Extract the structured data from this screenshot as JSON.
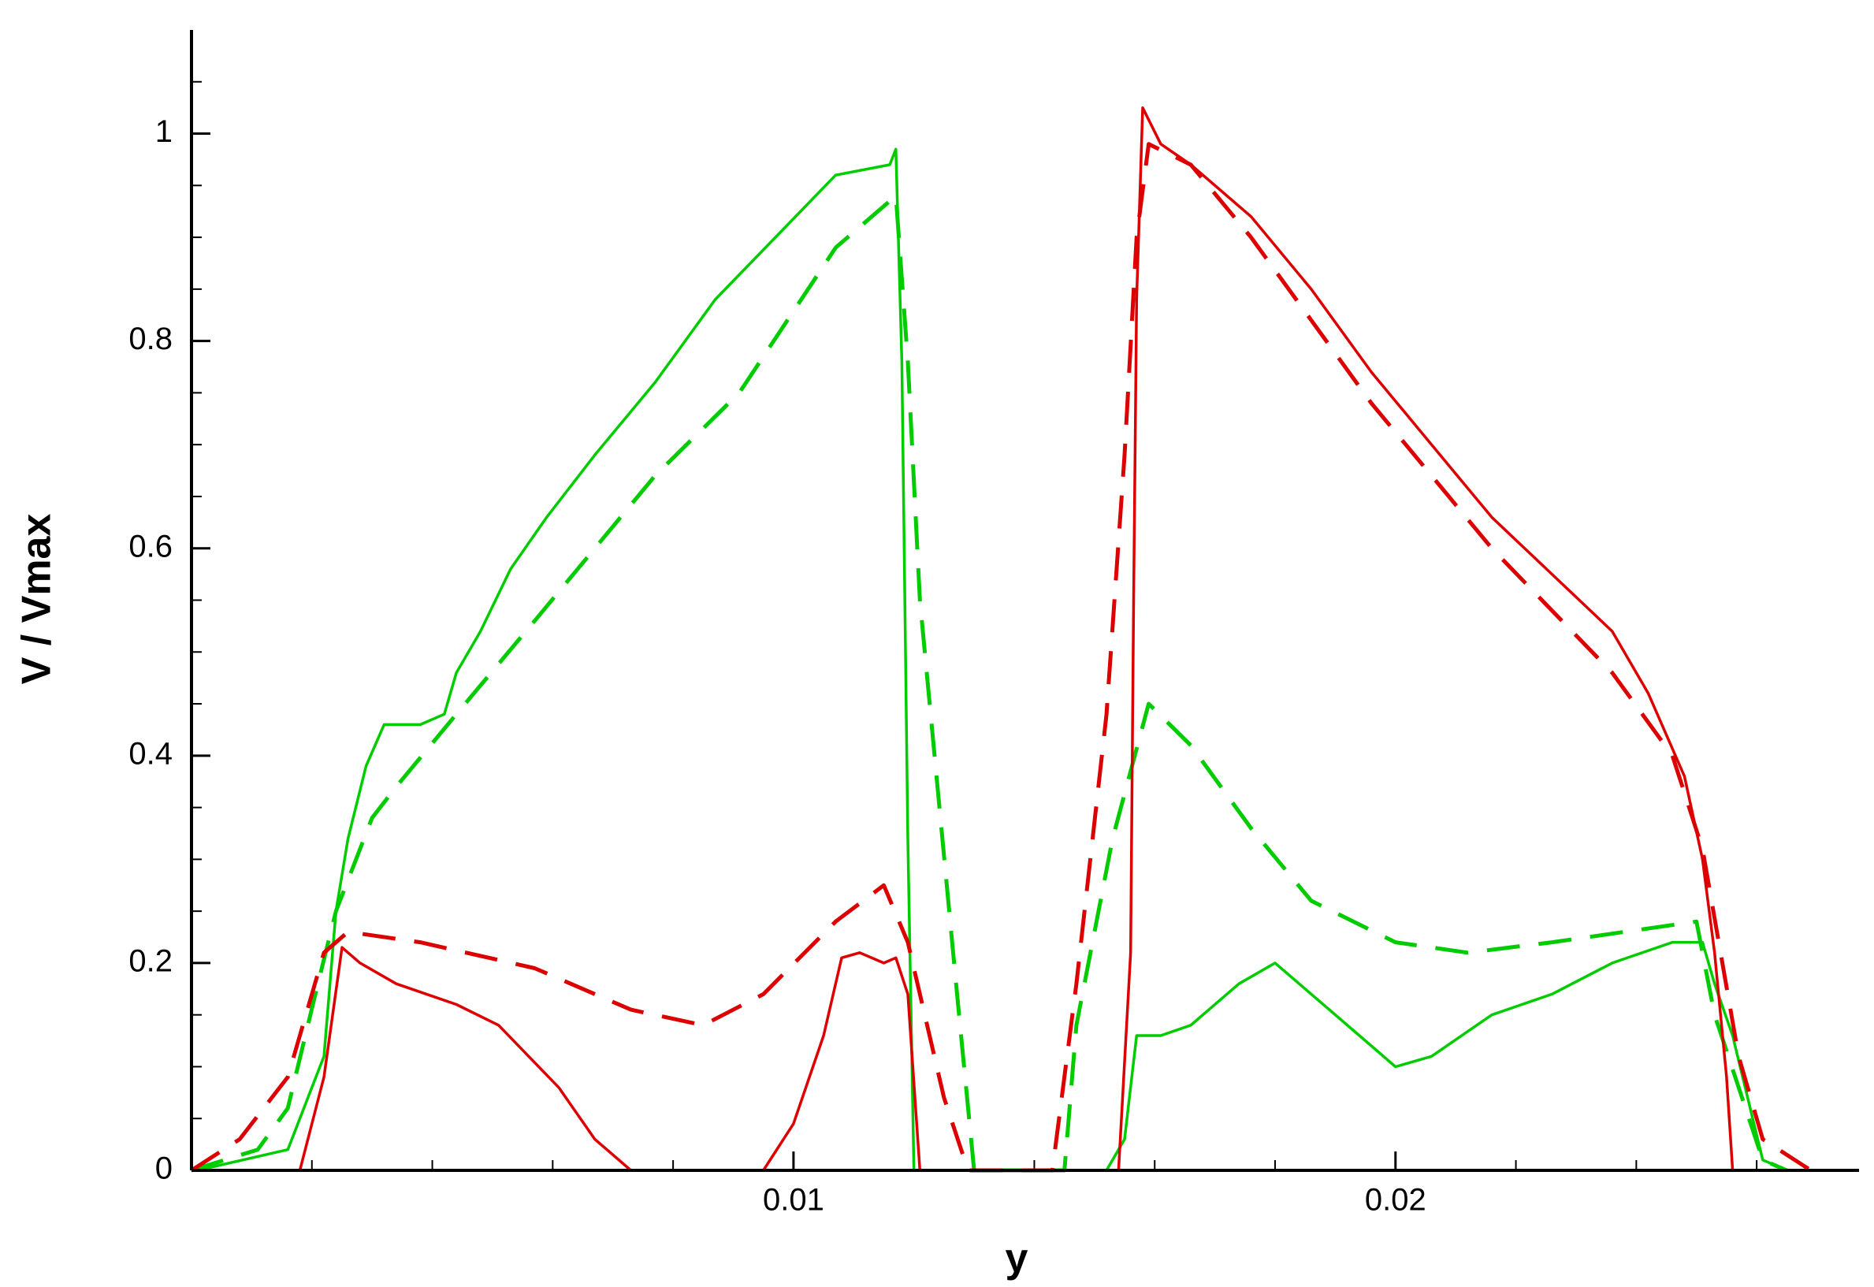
{
  "chart_data": {
    "type": "line",
    "xlabel": "y",
    "ylabel": "V / Vmax",
    "xlim": [
      0,
      0.0277
    ],
    "ylim": [
      0,
      1.1
    ],
    "xticks": [
      0.01,
      0.02
    ],
    "yticks": [
      0,
      0.2,
      0.4,
      0.6,
      0.8,
      1
    ],
    "xminorticks": [
      0.002,
      0.004,
      0.006,
      0.008,
      0.012,
      0.014,
      0.016,
      0.018,
      0.022,
      0.024,
      0.026
    ],
    "yminorticks": [
      0.05,
      0.1,
      0.15,
      0.25,
      0.3,
      0.35,
      0.45,
      0.5,
      0.55,
      0.65,
      0.7,
      0.75,
      0.85,
      0.9,
      0.95,
      1.05
    ],
    "series": [
      {
        "color": "#00cc00",
        "dash": false,
        "x": [
          0.0001,
          0.0016,
          0.0022,
          0.0024,
          0.0026,
          0.0029,
          0.0032,
          0.0038,
          0.0042,
          0.0044,
          0.0048,
          0.0053,
          0.0059,
          0.0067,
          0.0077,
          0.0087,
          0.0097,
          0.0107,
          0.0116,
          0.0117,
          0.0118,
          0.0119,
          0.012,
          0.0127,
          0.0152,
          0.0155,
          0.0157,
          0.0161,
          0.0166,
          0.0174,
          0.018,
          0.0186,
          0.0194,
          0.02,
          0.0206,
          0.0216,
          0.0226,
          0.0236,
          0.0246,
          0.0251,
          0.0253,
          0.0256,
          0.0261,
          0.0265,
          0.0271
        ],
        "values": [
          0,
          0.02,
          0.11,
          0.25,
          0.32,
          0.39,
          0.43,
          0.43,
          0.44,
          0.48,
          0.52,
          0.58,
          0.63,
          0.69,
          0.76,
          0.84,
          0.9,
          0.96,
          0.97,
          0.985,
          0.78,
          0.32,
          0,
          0,
          0,
          0.03,
          0.13,
          0.13,
          0.14,
          0.18,
          0.2,
          0.17,
          0.13,
          0.1,
          0.11,
          0.15,
          0.17,
          0.2,
          0.22,
          0.22,
          0.18,
          0.13,
          0.01,
          0,
          0
        ]
      },
      {
        "color": "#00cc00",
        "dash": true,
        "x": [
          0,
          0.0011,
          0.0016,
          0.0021,
          0.0024,
          0.003,
          0.0034,
          0.0044,
          0.0057,
          0.0077,
          0.0091,
          0.0107,
          0.0117,
          0.0119,
          0.0121,
          0.0127,
          0.013,
          0.0145,
          0.0147,
          0.0153,
          0.0159,
          0.0166,
          0.0176,
          0.0186,
          0.02,
          0.0212,
          0.0226,
          0.025,
          0.0253,
          0.0261,
          0.0265
        ],
        "values": [
          0,
          0.02,
          0.06,
          0.18,
          0.25,
          0.34,
          0.37,
          0.44,
          0.53,
          0.67,
          0.75,
          0.89,
          0.94,
          0.78,
          0.55,
          0.18,
          0,
          0,
          0.14,
          0.32,
          0.45,
          0.41,
          0.33,
          0.26,
          0.22,
          0.21,
          0.22,
          0.24,
          0.15,
          0.01,
          0
        ]
      },
      {
        "color": "#dd0000",
        "dash": false,
        "x": [
          0.0018,
          0.0022,
          0.0025,
          0.0028,
          0.0034,
          0.0044,
          0.0051,
          0.0061,
          0.0067,
          0.0073,
          0.0095,
          0.01,
          0.0105,
          0.0108,
          0.0111,
          0.0115,
          0.0117,
          0.0119,
          0.0121,
          0.0154,
          0.0156,
          0.01565,
          0.0157,
          0.0158,
          0.0161,
          0.0166,
          0.0176,
          0.0186,
          0.0196,
          0.0206,
          0.0216,
          0.0226,
          0.0236,
          0.0242,
          0.0248,
          0.0251,
          0.0253,
          0.0255,
          0.0256
        ],
        "values": [
          0,
          0.09,
          0.215,
          0.2,
          0.18,
          0.16,
          0.14,
          0.08,
          0.03,
          0,
          0,
          0.045,
          0.13,
          0.205,
          0.21,
          0.2,
          0.205,
          0.17,
          0,
          0,
          0.21,
          0.55,
          0.84,
          1.025,
          0.99,
          0.97,
          0.92,
          0.85,
          0.77,
          0.7,
          0.63,
          0.575,
          0.52,
          0.46,
          0.38,
          0.3,
          0.21,
          0.09,
          0
        ]
      },
      {
        "color": "#dd0000",
        "dash": true,
        "x": [
          0,
          0.0008,
          0.0016,
          0.0022,
          0.0026,
          0.0038,
          0.0057,
          0.0073,
          0.0085,
          0.0095,
          0.0107,
          0.0115,
          0.0119,
          0.0125,
          0.0129,
          0.0143,
          0.0147,
          0.0152,
          0.0155,
          0.0157,
          0.0159,
          0.0166,
          0.0176,
          0.0186,
          0.0196,
          0.0206,
          0.0216,
          0.0226,
          0.0236,
          0.0246,
          0.0251,
          0.0254,
          0.0257,
          0.0261,
          0.0269,
          0.0271
        ],
        "values": [
          0,
          0.03,
          0.09,
          0.21,
          0.23,
          0.22,
          0.195,
          0.155,
          0.14,
          0.17,
          0.24,
          0.275,
          0.22,
          0.07,
          0,
          0,
          0.18,
          0.44,
          0.69,
          0.9,
          0.99,
          0.97,
          0.9,
          0.82,
          0.74,
          0.67,
          0.6,
          0.54,
          0.48,
          0.4,
          0.31,
          0.21,
          0.11,
          0.03,
          0,
          0
        ]
      }
    ]
  }
}
